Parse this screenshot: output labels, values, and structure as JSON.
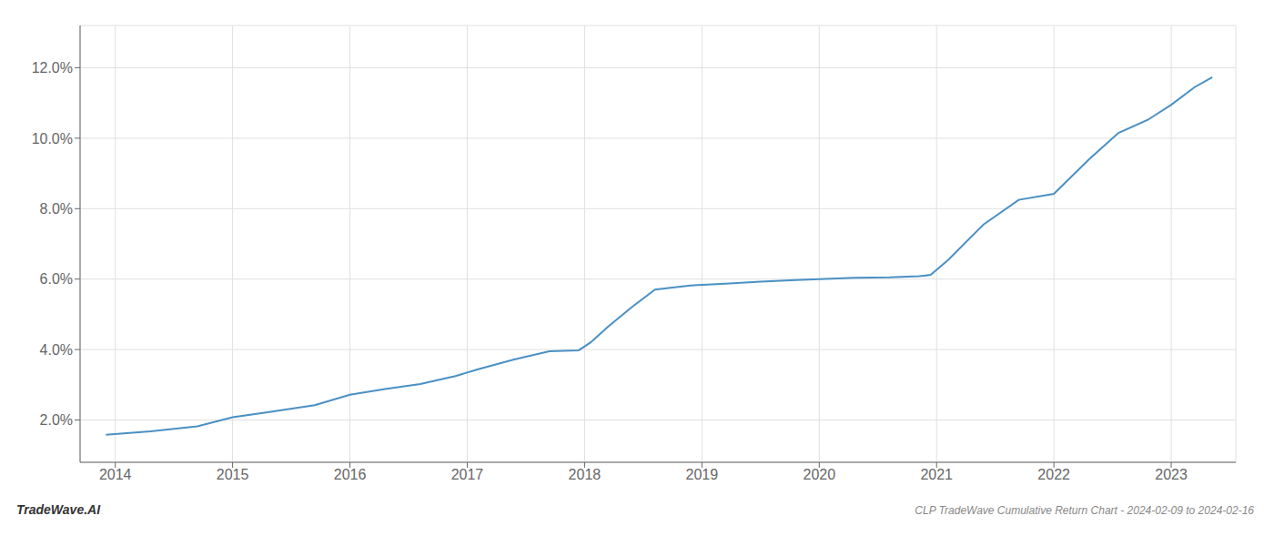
{
  "chart_data": {
    "type": "line",
    "title": "CLP TradeWave Cumulative Return Chart - 2024-02-09 to 2024-02-16",
    "annotations": [
      "TradeWave.AI"
    ],
    "x": [
      2013.92,
      2014.3,
      2014.7,
      2015.0,
      2015.3,
      2015.7,
      2016.0,
      2016.3,
      2016.6,
      2016.9,
      2017.1,
      2017.4,
      2017.7,
      2017.95,
      2018.05,
      2018.2,
      2018.4,
      2018.6,
      2018.9,
      2019.2,
      2019.5,
      2019.8,
      2020.0,
      2020.15,
      2020.3,
      2020.6,
      2020.85,
      2020.95,
      2021.1,
      2021.4,
      2021.7,
      2022.0,
      2022.3,
      2022.55,
      2022.8,
      2023.0,
      2023.2,
      2023.35
    ],
    "values": [
      1.58,
      1.68,
      1.82,
      2.08,
      2.22,
      2.42,
      2.72,
      2.88,
      3.02,
      3.25,
      3.45,
      3.72,
      3.95,
      3.98,
      4.2,
      4.65,
      5.2,
      5.7,
      5.82,
      5.87,
      5.93,
      5.97,
      6.0,
      6.02,
      6.04,
      6.05,
      6.08,
      6.12,
      6.55,
      7.55,
      8.25,
      8.42,
      9.4,
      10.15,
      10.52,
      10.95,
      11.45,
      11.73
    ],
    "color": "#4a90c4",
    "xlim": [
      2013.7,
      2023.55
    ],
    "ylim": [
      0.8,
      13.2
    ],
    "xticks": [
      2014,
      2015,
      2016,
      2017,
      2018,
      2019,
      2020,
      2021,
      2022,
      2023
    ],
    "yticks": [
      {
        "value": 2.0,
        "label": "2.0%"
      },
      {
        "value": 4.0,
        "label": "4.0%"
      },
      {
        "value": 6.0,
        "label": "6.0%"
      },
      {
        "value": 8.0,
        "label": "8.0%"
      },
      {
        "value": 10.0,
        "label": "10.0%"
      },
      {
        "value": 12.0,
        "label": "12.0%"
      }
    ],
    "grid": true
  }
}
